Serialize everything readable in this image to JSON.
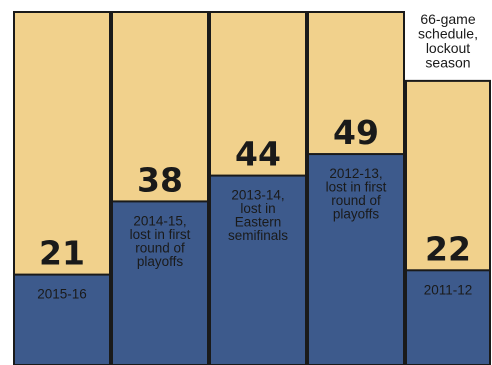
{
  "chart_data": {
    "type": "bar",
    "categories": [
      "2015-16",
      "2014-15",
      "2013-14",
      "2012-13",
      "2011-12"
    ],
    "values": [
      21,
      38,
      44,
      49,
      22
    ],
    "games": [
      82,
      82,
      82,
      82,
      66
    ],
    "labels": [
      [
        "2015-16"
      ],
      [
        "2014-15,",
        "lost in first",
        "round of",
        "playoffs"
      ],
      [
        "2013-14,",
        "lost in",
        "Eastern",
        "semifinals"
      ],
      [
        "2012-13,",
        "lost in first",
        "round of",
        "playoffs"
      ],
      [
        "2011-12"
      ]
    ],
    "annotation": [
      "66-game",
      "schedule,",
      "lockout",
      "season"
    ],
    "colors": {
      "wins": "#3d5a8c",
      "games": "#f1d18c",
      "border": "#1a1a1a",
      "label_light": "#ffffff",
      "label_dark": "#1a1a1a"
    }
  }
}
